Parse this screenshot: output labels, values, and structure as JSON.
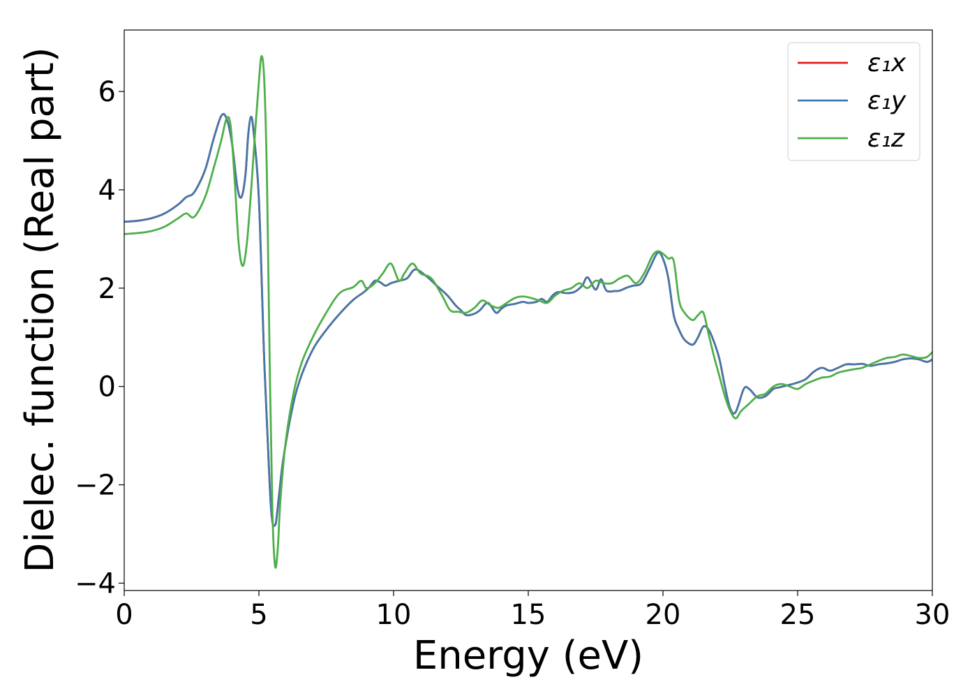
{
  "chart_data": {
    "type": "line",
    "title": "",
    "xlabel": "Energy (eV)",
    "ylabel": "Dielec. function (Real part)",
    "xlim": [
      0,
      30
    ],
    "ylim": [
      -4.15,
      7.25
    ],
    "xticks": [
      0,
      5,
      10,
      15,
      20,
      25,
      30
    ],
    "xtick_labels": [
      "0",
      "5",
      "10",
      "15",
      "20",
      "25",
      "30"
    ],
    "yticks": [
      -4,
      -2,
      0,
      2,
      4,
      6
    ],
    "ytick_labels": [
      "−4",
      "−2",
      "0",
      "2",
      "4",
      "6"
    ],
    "grid": false,
    "legend_position": "top-right",
    "series": [
      {
        "name": "ε₁x",
        "color": "#e41a1c",
        "x": [
          0,
          0.5,
          1,
          1.5,
          2,
          2.3,
          2.6,
          3.0,
          3.3,
          3.6,
          3.8,
          4.0,
          4.2,
          4.35,
          4.5,
          4.6,
          4.7,
          4.8,
          5.0,
          5.2,
          5.4,
          5.5,
          5.6,
          5.65,
          5.75,
          5.9,
          6.2,
          6.5,
          7.0,
          7.5,
          8.0,
          8.5,
          8.9,
          9.1,
          9.3,
          9.5,
          9.7,
          9.9,
          10.2,
          10.5,
          10.8,
          11.2,
          11.6,
          12.0,
          12.3,
          12.5,
          12.7,
          13.0,
          13.2,
          13.5,
          13.8,
          14.0,
          14.2,
          14.5,
          14.8,
          15.0,
          15.3,
          15.5,
          15.7,
          15.9,
          16.1,
          16.4,
          16.7,
          17.0,
          17.2,
          17.5,
          17.7,
          17.9,
          18.2,
          18.4,
          18.7,
          18.9,
          19.2,
          19.5,
          19.8,
          20.0,
          20.2,
          20.4,
          20.6,
          20.8,
          21.1,
          21.3,
          21.5,
          21.7,
          21.9,
          22.1,
          22.3,
          22.5,
          22.7,
          23.0,
          23.2,
          23.5,
          23.8,
          24.1,
          24.3,
          24.6,
          25.0,
          25.3,
          25.6,
          25.9,
          26.2,
          26.5,
          26.8,
          27.1,
          27.4,
          27.7,
          28.0,
          28.3,
          28.6,
          28.9,
          29.2,
          29.5,
          29.8,
          30.0
        ],
        "y": [
          3.35,
          3.37,
          3.42,
          3.52,
          3.7,
          3.85,
          3.95,
          4.4,
          5.0,
          5.5,
          5.45,
          4.95,
          4.05,
          3.85,
          4.3,
          5.1,
          5.48,
          5.2,
          3.8,
          0.5,
          -2.0,
          -2.75,
          -2.82,
          -2.7,
          -2.2,
          -1.5,
          -0.55,
          0.1,
          0.75,
          1.15,
          1.48,
          1.76,
          1.92,
          2.02,
          2.15,
          2.12,
          2.05,
          2.1,
          2.15,
          2.2,
          2.38,
          2.25,
          2.05,
          1.85,
          1.65,
          1.55,
          1.45,
          1.48,
          1.55,
          1.7,
          1.5,
          1.58,
          1.65,
          1.68,
          1.72,
          1.7,
          1.72,
          1.78,
          1.72,
          1.85,
          1.92,
          1.9,
          1.92,
          2.05,
          2.22,
          1.97,
          2.18,
          1.95,
          1.94,
          1.95,
          2.02,
          2.05,
          2.1,
          2.4,
          2.72,
          2.6,
          2.2,
          1.45,
          1.15,
          0.95,
          0.85,
          1.0,
          1.22,
          1.15,
          0.9,
          0.55,
          0.0,
          -0.45,
          -0.52,
          -0.05,
          -0.05,
          -0.22,
          -0.2,
          -0.05,
          -0.02,
          0.02,
          0.08,
          0.15,
          0.3,
          0.38,
          0.32,
          0.38,
          0.45,
          0.45,
          0.46,
          0.42,
          0.45,
          0.47,
          0.5,
          0.55,
          0.57,
          0.55,
          0.5,
          0.55
        ]
      },
      {
        "name": "ε₁y",
        "color": "#4477aa",
        "x": [
          0,
          0.5,
          1,
          1.5,
          2,
          2.3,
          2.6,
          3.0,
          3.3,
          3.6,
          3.8,
          4.0,
          4.2,
          4.35,
          4.5,
          4.6,
          4.7,
          4.8,
          5.0,
          5.2,
          5.4,
          5.5,
          5.6,
          5.65,
          5.75,
          5.9,
          6.2,
          6.5,
          7.0,
          7.5,
          8.0,
          8.5,
          8.9,
          9.1,
          9.3,
          9.5,
          9.7,
          9.9,
          10.2,
          10.5,
          10.8,
          11.2,
          11.6,
          12.0,
          12.3,
          12.5,
          12.7,
          13.0,
          13.2,
          13.5,
          13.8,
          14.0,
          14.2,
          14.5,
          14.8,
          15.0,
          15.3,
          15.5,
          15.7,
          15.9,
          16.1,
          16.4,
          16.7,
          17.0,
          17.2,
          17.5,
          17.7,
          17.9,
          18.2,
          18.4,
          18.7,
          18.9,
          19.2,
          19.5,
          19.8,
          20.0,
          20.2,
          20.4,
          20.6,
          20.8,
          21.1,
          21.3,
          21.5,
          21.7,
          21.9,
          22.1,
          22.3,
          22.5,
          22.7,
          23.0,
          23.2,
          23.5,
          23.8,
          24.1,
          24.3,
          24.6,
          25.0,
          25.3,
          25.6,
          25.9,
          26.2,
          26.5,
          26.8,
          27.1,
          27.4,
          27.7,
          28.0,
          28.3,
          28.6,
          28.9,
          29.2,
          29.5,
          29.8,
          30.0
        ],
        "y": [
          3.35,
          3.37,
          3.42,
          3.52,
          3.7,
          3.85,
          3.95,
          4.4,
          5.0,
          5.5,
          5.45,
          4.95,
          4.05,
          3.85,
          4.3,
          5.1,
          5.48,
          5.2,
          3.8,
          0.5,
          -2.0,
          -2.75,
          -2.82,
          -2.7,
          -2.2,
          -1.5,
          -0.55,
          0.1,
          0.75,
          1.15,
          1.48,
          1.76,
          1.92,
          2.02,
          2.15,
          2.12,
          2.05,
          2.1,
          2.15,
          2.2,
          2.38,
          2.25,
          2.05,
          1.85,
          1.65,
          1.55,
          1.45,
          1.48,
          1.55,
          1.7,
          1.5,
          1.58,
          1.65,
          1.68,
          1.72,
          1.7,
          1.72,
          1.78,
          1.72,
          1.85,
          1.92,
          1.9,
          1.92,
          2.05,
          2.22,
          1.97,
          2.18,
          1.95,
          1.94,
          1.95,
          2.02,
          2.05,
          2.1,
          2.4,
          2.72,
          2.6,
          2.2,
          1.45,
          1.15,
          0.95,
          0.85,
          1.0,
          1.22,
          1.15,
          0.9,
          0.55,
          0.0,
          -0.45,
          -0.52,
          -0.05,
          -0.05,
          -0.22,
          -0.2,
          -0.05,
          -0.02,
          0.02,
          0.08,
          0.15,
          0.3,
          0.38,
          0.32,
          0.38,
          0.45,
          0.45,
          0.46,
          0.42,
          0.45,
          0.47,
          0.5,
          0.55,
          0.57,
          0.55,
          0.5,
          0.55
        ]
      },
      {
        "name": "ε₁z",
        "color": "#4daf4a",
        "x": [
          0,
          0.5,
          1,
          1.5,
          2,
          2.3,
          2.6,
          3.0,
          3.3,
          3.6,
          3.8,
          3.95,
          4.1,
          4.25,
          4.4,
          4.55,
          4.7,
          4.85,
          5.0,
          5.1,
          5.2,
          5.3,
          5.4,
          5.5,
          5.6,
          5.7,
          5.8,
          6.0,
          6.3,
          6.6,
          7.0,
          7.5,
          8.0,
          8.5,
          8.8,
          9.0,
          9.3,
          9.6,
          9.9,
          10.2,
          10.4,
          10.7,
          11.0,
          11.4,
          11.8,
          12.1,
          12.4,
          12.7,
          13.0,
          13.3,
          13.6,
          13.9,
          14.2,
          14.5,
          14.8,
          15.1,
          15.4,
          15.7,
          16.0,
          16.3,
          16.6,
          16.9,
          17.2,
          17.5,
          17.8,
          18.1,
          18.4,
          18.7,
          19.0,
          19.3,
          19.6,
          19.8,
          20.0,
          20.2,
          20.4,
          20.6,
          20.8,
          21.1,
          21.3,
          21.5,
          21.7,
          21.9,
          22.1,
          22.3,
          22.5,
          22.7,
          22.9,
          23.2,
          23.5,
          23.8,
          24.1,
          24.4,
          24.7,
          25.0,
          25.3,
          25.6,
          25.9,
          26.2,
          26.5,
          26.8,
          27.1,
          27.4,
          27.7,
          28.0,
          28.3,
          28.6,
          28.9,
          29.2,
          29.5,
          29.8,
          30.0
        ],
        "y": [
          3.1,
          3.12,
          3.16,
          3.25,
          3.42,
          3.52,
          3.45,
          3.85,
          4.4,
          5.0,
          5.45,
          5.3,
          4.2,
          2.9,
          2.45,
          2.9,
          3.9,
          5.1,
          6.2,
          6.72,
          6.2,
          4.2,
          0.5,
          -2.5,
          -3.65,
          -3.3,
          -2.3,
          -1.1,
          -0.1,
          0.5,
          1.0,
          1.5,
          1.9,
          2.02,
          2.15,
          2.0,
          2.1,
          2.3,
          2.5,
          2.15,
          2.3,
          2.5,
          2.3,
          2.2,
          1.85,
          1.55,
          1.52,
          1.5,
          1.6,
          1.75,
          1.65,
          1.6,
          1.7,
          1.8,
          1.83,
          1.8,
          1.75,
          1.7,
          1.85,
          1.95,
          2.0,
          2.1,
          2.0,
          2.15,
          2.1,
          2.1,
          2.2,
          2.25,
          2.1,
          2.3,
          2.65,
          2.75,
          2.7,
          2.6,
          2.55,
          1.75,
          1.5,
          1.35,
          1.45,
          1.5,
          1.05,
          0.6,
          0.2,
          -0.2,
          -0.5,
          -0.65,
          -0.5,
          -0.35,
          -0.2,
          -0.15,
          0.0,
          0.05,
          0.0,
          -0.05,
          0.05,
          0.12,
          0.18,
          0.2,
          0.28,
          0.32,
          0.35,
          0.38,
          0.45,
          0.52,
          0.58,
          0.6,
          0.65,
          0.62,
          0.58,
          0.6,
          0.7
        ]
      }
    ]
  }
}
